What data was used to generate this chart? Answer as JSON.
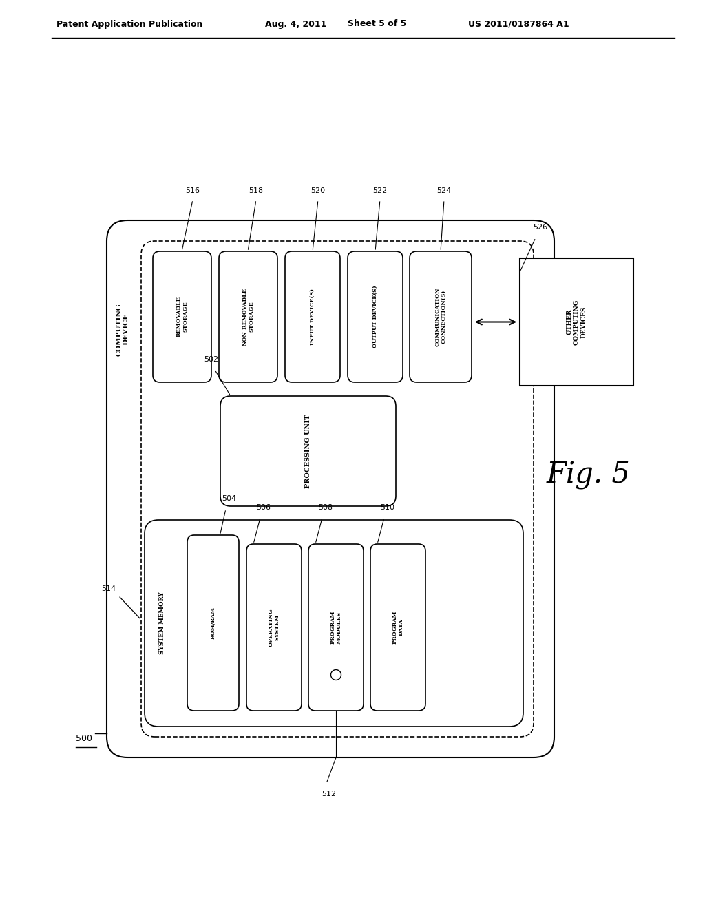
{
  "bg_color": "#ffffff",
  "header_text": "Patent Application Publication",
  "header_date": "Aug. 4, 2011",
  "header_sheet": "Sheet 5 of 5",
  "header_patent": "US 2011/0187864 A1",
  "fig_label": "Fig. 5",
  "ref_500": "500",
  "ref_512": "512",
  "ref_514": "514",
  "ref_502": "502",
  "ref_504": "504",
  "ref_506": "506",
  "ref_508": "508",
  "ref_510": "510",
  "ref_516": "516",
  "ref_518": "518",
  "ref_520": "520",
  "ref_522": "522",
  "ref_524": "524",
  "ref_526": "526",
  "computing_device_label": "COMPUTING\nDEVICE",
  "other_computing_label": "OTHER\nCOMPUTING\nDEVICES",
  "system_memory_label": "SYSTEM MEMORY",
  "rom_ram_label": "ROM/RAM",
  "operating_system_label": "OPERATING\nSYSTEM",
  "program_modules_label": "PROGRAM\nMODULES",
  "program_data_label": "PROGRAM\nDATA",
  "processing_unit_label": "PROCESSING UNIT",
  "removable_storage_label": "REMOVABLE\nSTORAGE",
  "non_removable_storage_label": "NON-REMOVABLE\nSTORAGE",
  "input_device_label": "INPUT DEVICE(S)",
  "output_device_label": "OUTPUT DEVICE(S)",
  "communication_label": "COMMUNICATION\nCONNECTION(S)"
}
